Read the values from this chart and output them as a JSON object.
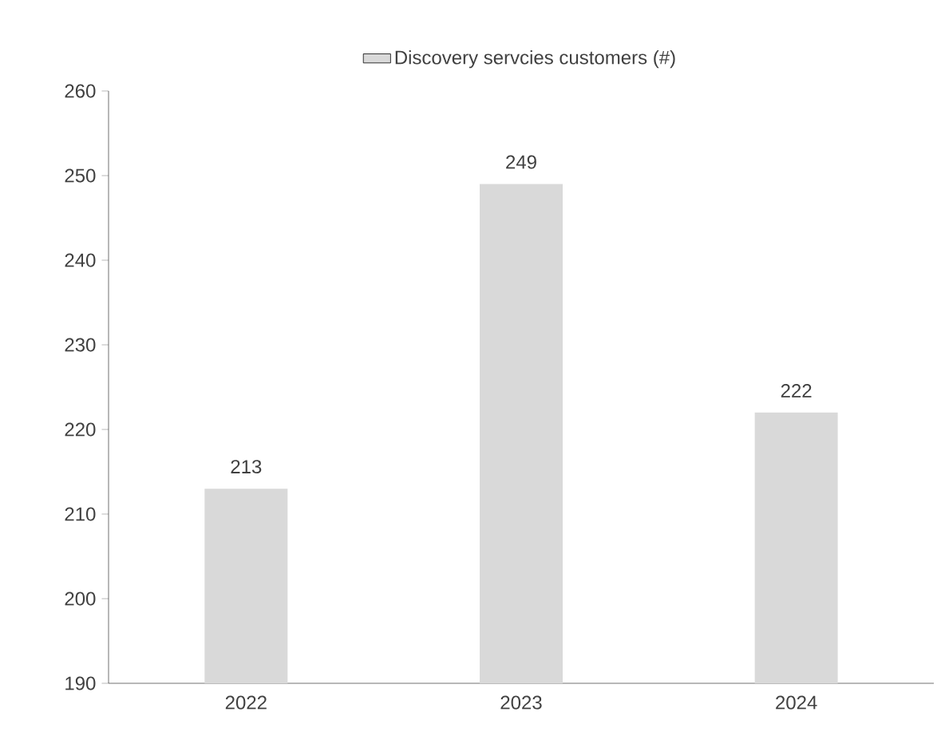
{
  "chart_data": {
    "type": "bar",
    "categories": [
      "2022",
      "2023",
      "2024"
    ],
    "series": [
      {
        "name": "Discovery servcies customers (#)",
        "color": "#d9d9d9",
        "values": [
          213,
          249,
          222
        ]
      }
    ],
    "ylim": [
      190,
      260
    ],
    "yticks": [
      190,
      200,
      210,
      220,
      230,
      240,
      250,
      260
    ],
    "data_labels": true,
    "legend": "top",
    "grid": false
  }
}
